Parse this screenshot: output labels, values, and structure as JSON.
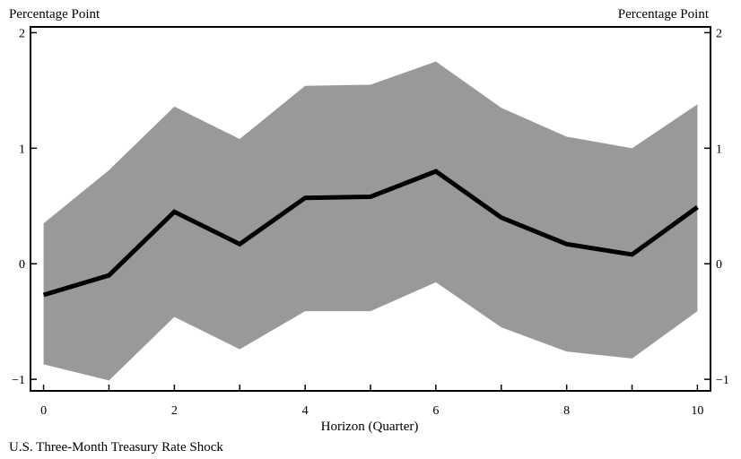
{
  "chart_data": {
    "type": "area",
    "y_unit_left": "Percentage Point",
    "y_unit_right": "Percentage Point",
    "xlabel": "Horizon (Quarter)",
    "caption": "U.S. Three-Month Treasury Rate Shock",
    "xlim": [
      -0.2,
      10.2
    ],
    "ylim": [
      -1.1,
      2.05
    ],
    "x_ticks": [
      0,
      2,
      4,
      6,
      8,
      10
    ],
    "x_tick_labels": [
      "0",
      "2",
      "4",
      "6",
      "8",
      "10"
    ],
    "y_ticks": [
      -1,
      0,
      1,
      2
    ],
    "y_tick_labels": [
      "−1",
      "0",
      "1",
      "2"
    ],
    "x": [
      0,
      1,
      2,
      3,
      4,
      5,
      6,
      7,
      8,
      9,
      10
    ],
    "series": [
      {
        "values": [
          -0.27,
          -0.1,
          0.45,
          0.17,
          0.57,
          0.58,
          0.8,
          0.4,
          0.17,
          0.08,
          0.49
        ]
      }
    ],
    "band": {
      "upper": [
        0.35,
        0.81,
        1.36,
        1.08,
        1.54,
        1.55,
        1.75,
        1.35,
        1.1,
        1.0,
        1.38
      ],
      "lower": [
        -0.87,
        -1.01,
        -0.46,
        -0.74,
        -0.41,
        -0.41,
        -0.16,
        -0.55,
        -0.76,
        -0.82,
        -0.41
      ]
    },
    "grid": false,
    "colors": {
      "band": "#999999",
      "line": "#000000",
      "axes": "#000000"
    }
  }
}
